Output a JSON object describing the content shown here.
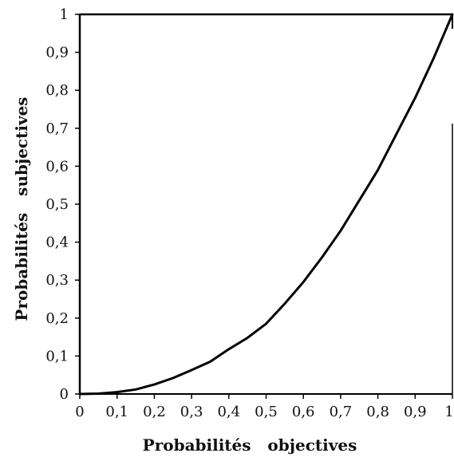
{
  "chart_data": {
    "type": "line",
    "title": "",
    "xlabel": "Probabilités   objectives",
    "ylabel": "Probabilités   subjectives",
    "xlim": [
      0,
      1
    ],
    "ylim": [
      0,
      1
    ],
    "grid": false,
    "legend": "none",
    "x_ticks": [
      "0",
      "0,1",
      "0,2",
      "0,3",
      "0,4",
      "0,5",
      "0,6",
      "0,7",
      "0,8",
      "0,9",
      "1"
    ],
    "y_ticks": [
      "0",
      "0,1",
      "0,2",
      "0,3",
      "0,4",
      "0,5",
      "0,6",
      "0,7",
      "0,8",
      "0,9",
      "1"
    ],
    "series": [
      {
        "x": [
          0,
          0.05,
          0.1,
          0.15,
          0.2,
          0.25,
          0.3,
          0.35,
          0.4,
          0.45,
          0.5,
          0.55,
          0.6,
          0.65,
          0.7,
          0.75,
          0.8,
          0.85,
          0.9,
          0.95,
          1.0
        ],
        "y": [
          0,
          0.001,
          0.005,
          0.012,
          0.025,
          0.042,
          0.063,
          0.085,
          0.118,
          0.148,
          0.185,
          0.238,
          0.295,
          0.36,
          0.43,
          0.51,
          0.59,
          0.685,
          0.78,
          0.885,
          1.0
        ],
        "color": "#000000"
      }
    ]
  }
}
